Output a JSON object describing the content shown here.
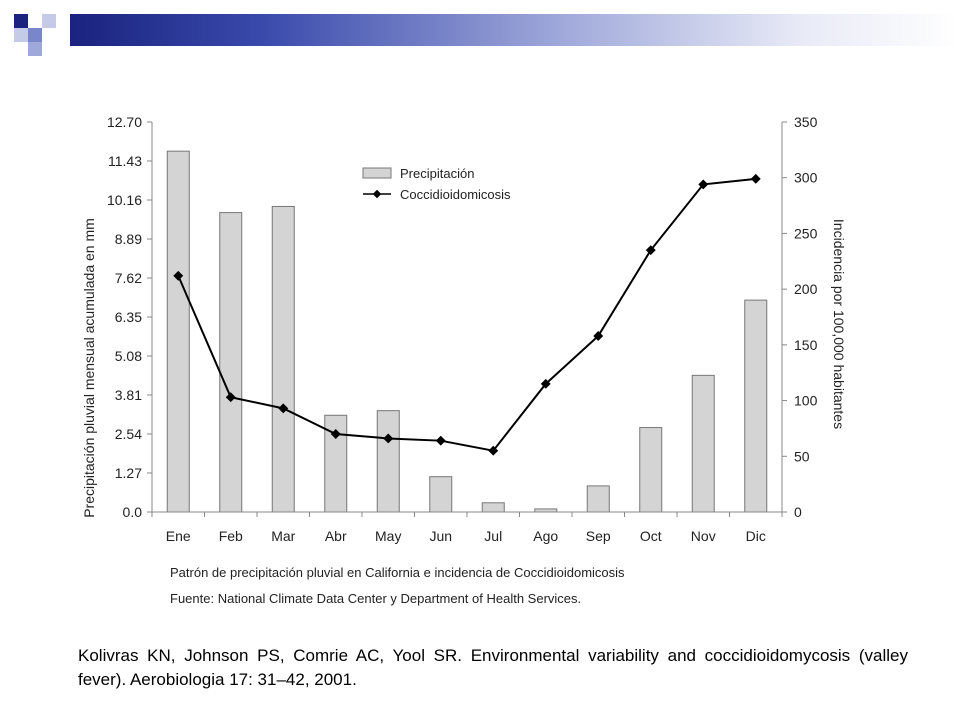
{
  "citation": "Kolivras KN, Johnson PS, Comrie AC, Yool SR. Environmental variability and coccidioidomycosis (valley fever). Aerobiologia 17: 31–42, 2001.",
  "chart_data": {
    "type": "bar",
    "categories": [
      "Ene",
      "Feb",
      "Mar",
      "Abr",
      "May",
      "Jun",
      "Jul",
      "Ago",
      "Sep",
      "Oct",
      "Nov",
      "Dic"
    ],
    "caption_line1": "Patrón de precipitación pluvial en California  e incidencia de Coccidioidomicosis",
    "caption_line2": "Fuente: National Climate Data Center y  Department of Health Services.",
    "ylabel_left": "Precipitación pluvial mensual acumulada en mm",
    "ylabel_right": "Incidencia por 100,000 habitantes",
    "y_left_ticks": [
      "0.0",
      "1.27",
      "2.54",
      "3.81",
      "5.08",
      "6.35",
      "7.62",
      "8.89",
      "10.16",
      "11.43",
      "12.70"
    ],
    "y_right_ticks": [
      "0",
      "50",
      "100",
      "150",
      "200",
      "250",
      "300",
      "350"
    ],
    "ylim_left": [
      0,
      12.7
    ],
    "ylim_right": [
      0,
      350
    ],
    "legend_position": "top-center",
    "series": [
      {
        "name": "Precipitación",
        "type": "bar",
        "axis": "left",
        "values": [
          11.75,
          9.75,
          9.95,
          3.15,
          3.3,
          1.15,
          0.3,
          0.1,
          0.85,
          2.75,
          4.45,
          6.9
        ],
        "color": "#d4d4d4"
      },
      {
        "name": "Coccidioidomicosis",
        "type": "line",
        "axis": "right",
        "values": [
          212,
          103,
          93,
          70,
          66,
          64,
          55,
          115,
          158,
          235,
          294,
          299
        ],
        "color": "#000000"
      }
    ]
  }
}
